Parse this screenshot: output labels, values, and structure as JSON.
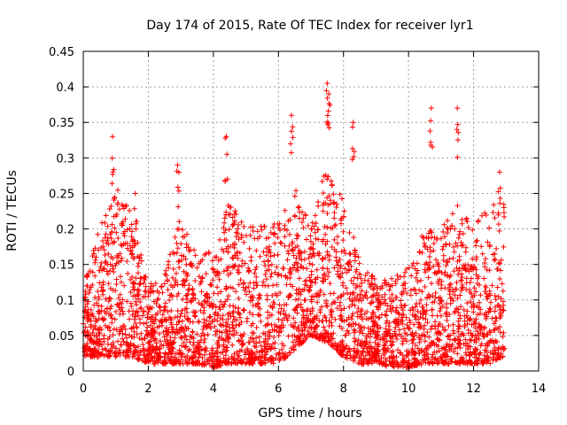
{
  "chart_data": {
    "type": "scatter",
    "title": "Day 174 of 2015, Rate Of TEC Index for receiver lyr1",
    "xlabel": "GPS time / hours",
    "ylabel": "ROTI / TECUs",
    "xlim": [
      0,
      14
    ],
    "ylim": [
      0,
      0.45
    ],
    "xticks": [
      0,
      2,
      4,
      6,
      8,
      10,
      12,
      14
    ],
    "yticks": [
      0,
      0.05,
      0.1,
      0.15,
      0.2,
      0.25,
      0.3,
      0.35,
      0.4,
      0.45
    ],
    "xtick_labels": [
      "0",
      "2",
      "4",
      "6",
      "8",
      "10",
      "12",
      "14"
    ],
    "ytick_labels": [
      "0",
      "0.05",
      "0.1",
      "0.15",
      "0.2",
      "0.25",
      "0.3",
      "0.35",
      "0.4",
      "0.45"
    ],
    "grid": true,
    "marker": "+",
    "color": "#ff0000",
    "x_data_range": [
      0,
      12.95
    ],
    "notable_points": [
      {
        "x": 0.9,
        "y": 0.33
      },
      {
        "x": 1.6,
        "y": 0.25
      },
      {
        "x": 2.9,
        "y": 0.29
      },
      {
        "x": 4.4,
        "y": 0.33
      },
      {
        "x": 6.4,
        "y": 0.36
      },
      {
        "x": 7.5,
        "y": 0.405
      },
      {
        "x": 7.55,
        "y": 0.39
      },
      {
        "x": 8.3,
        "y": 0.35
      },
      {
        "x": 10.7,
        "y": 0.37
      },
      {
        "x": 11.5,
        "y": 0.37
      },
      {
        "x": 12.8,
        "y": 0.28
      }
    ],
    "envelope": {
      "x": [
        0.0,
        0.5,
        1.0,
        1.5,
        2.0,
        2.5,
        3.0,
        3.5,
        4.0,
        4.5,
        5.0,
        5.5,
        6.0,
        6.5,
        7.0,
        7.5,
        8.0,
        8.5,
        9.0,
        9.5,
        10.0,
        10.5,
        11.0,
        11.5,
        12.0,
        12.5,
        12.95
      ],
      "upper": [
        0.13,
        0.2,
        0.26,
        0.22,
        0.12,
        0.14,
        0.22,
        0.16,
        0.17,
        0.24,
        0.2,
        0.21,
        0.22,
        0.26,
        0.2,
        0.3,
        0.24,
        0.16,
        0.13,
        0.13,
        0.15,
        0.2,
        0.2,
        0.24,
        0.2,
        0.24,
        0.24
      ],
      "lower": [
        0.02,
        0.02,
        0.02,
        0.02,
        0.01,
        0.01,
        0.01,
        0.01,
        0.005,
        0.01,
        0.01,
        0.01,
        0.01,
        0.03,
        0.05,
        0.04,
        0.02,
        0.01,
        0.01,
        0.005,
        0.005,
        0.01,
        0.01,
        0.01,
        0.01,
        0.01,
        0.02
      ]
    }
  }
}
